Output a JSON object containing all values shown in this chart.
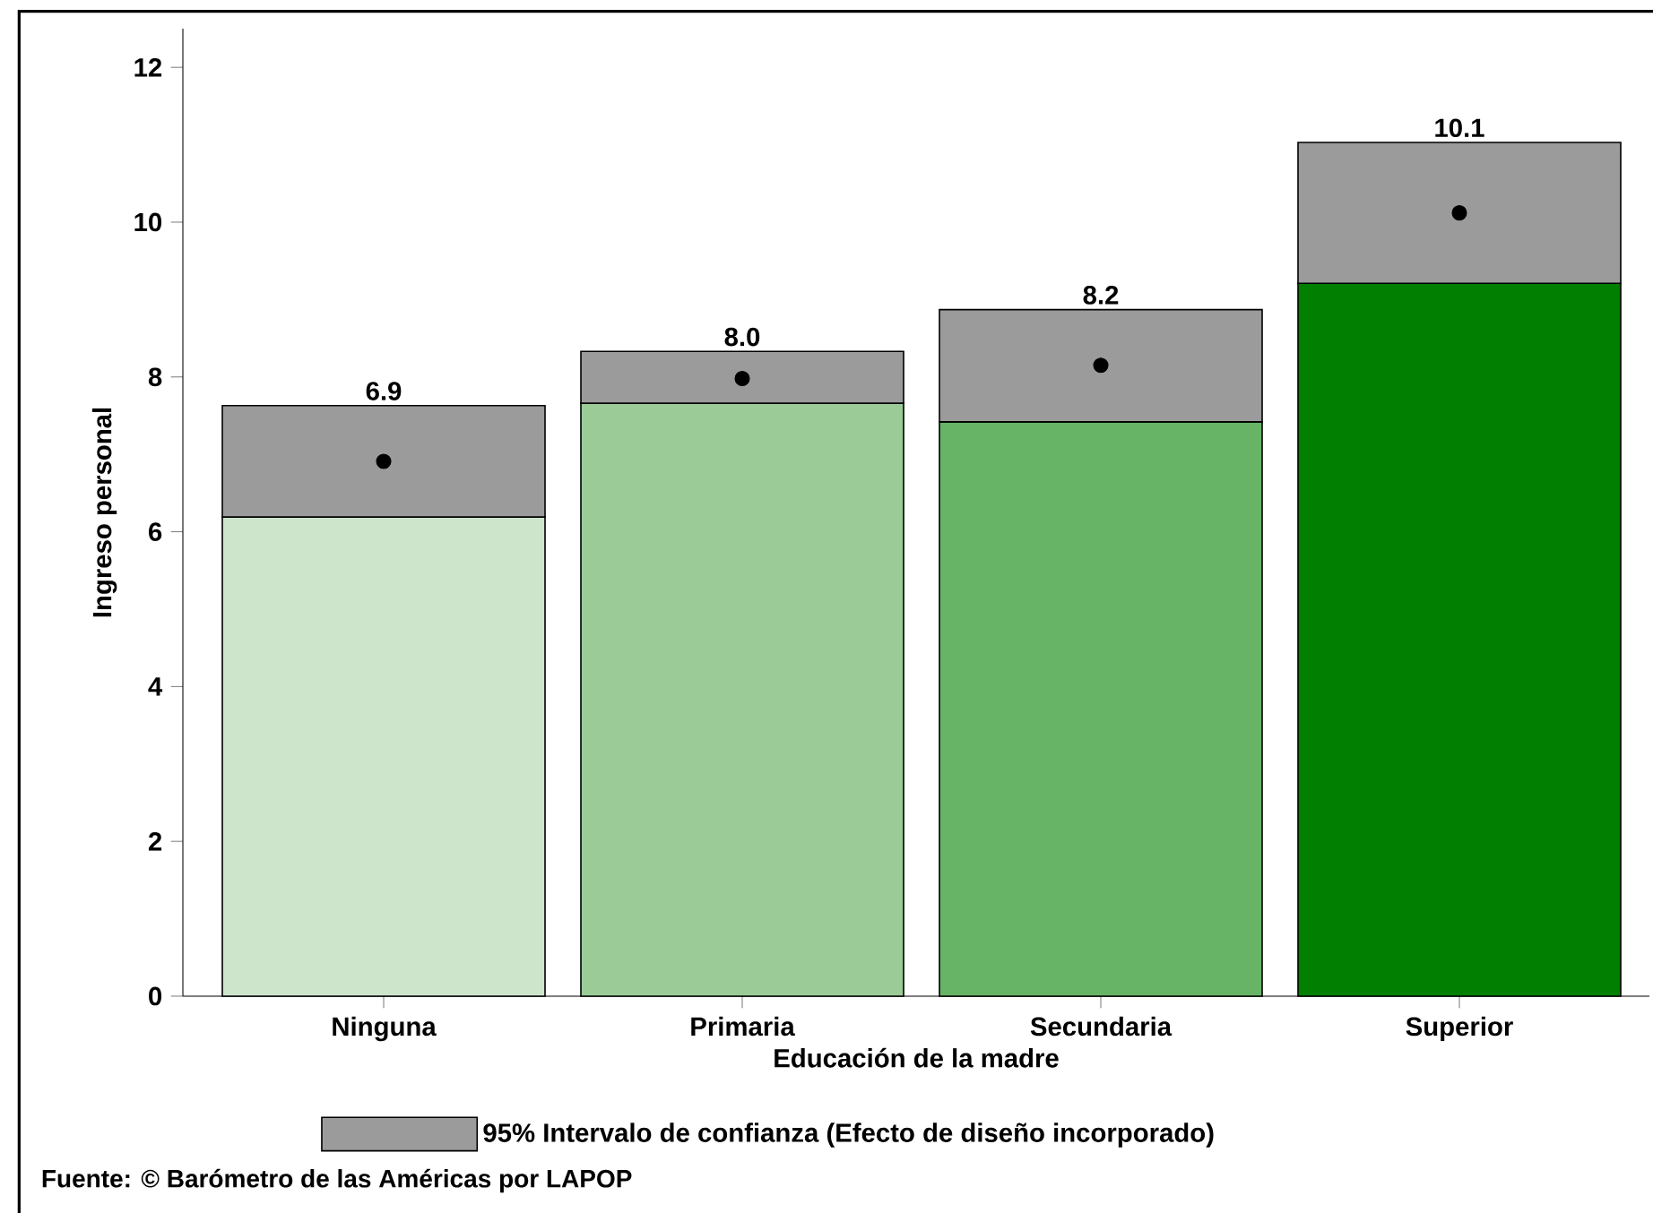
{
  "chart_data": {
    "type": "bar",
    "stacked": true,
    "xlabel": "Educación de la madre",
    "ylabel": "Ingreso personal",
    "categories": [
      "Ninguna",
      "Primaria",
      "Secundaria",
      "Superior"
    ],
    "series": [
      {
        "type": "bar",
        "colors": [
          "#cce5cb",
          "#9bcc98",
          "#67b467",
          "#007f00"
        ],
        "values": [
          6.19,
          7.66,
          7.42,
          9.21
        ]
      },
      {
        "type": "bar",
        "name": "95% Intervalo de confianza (Efecto de diseño incorporado)",
        "color": "#9b9b9b",
        "values": [
          1.44,
          0.67,
          1.45,
          1.82
        ]
      },
      {
        "type": "scatter",
        "color": "#000000",
        "values": [
          6.91,
          7.98,
          8.15,
          10.12
        ],
        "value_labels": [
          "6.9",
          "8.0",
          "8.2",
          "10.1"
        ]
      }
    ],
    "ylim": [
      0,
      12.5
    ],
    "yticks": [
      0,
      2,
      4,
      6,
      8,
      10,
      12
    ],
    "grid": false,
    "legend": "bottom",
    "annotations": [
      "Fuente: © Barómetro de las Américas por LAPOP"
    ]
  }
}
